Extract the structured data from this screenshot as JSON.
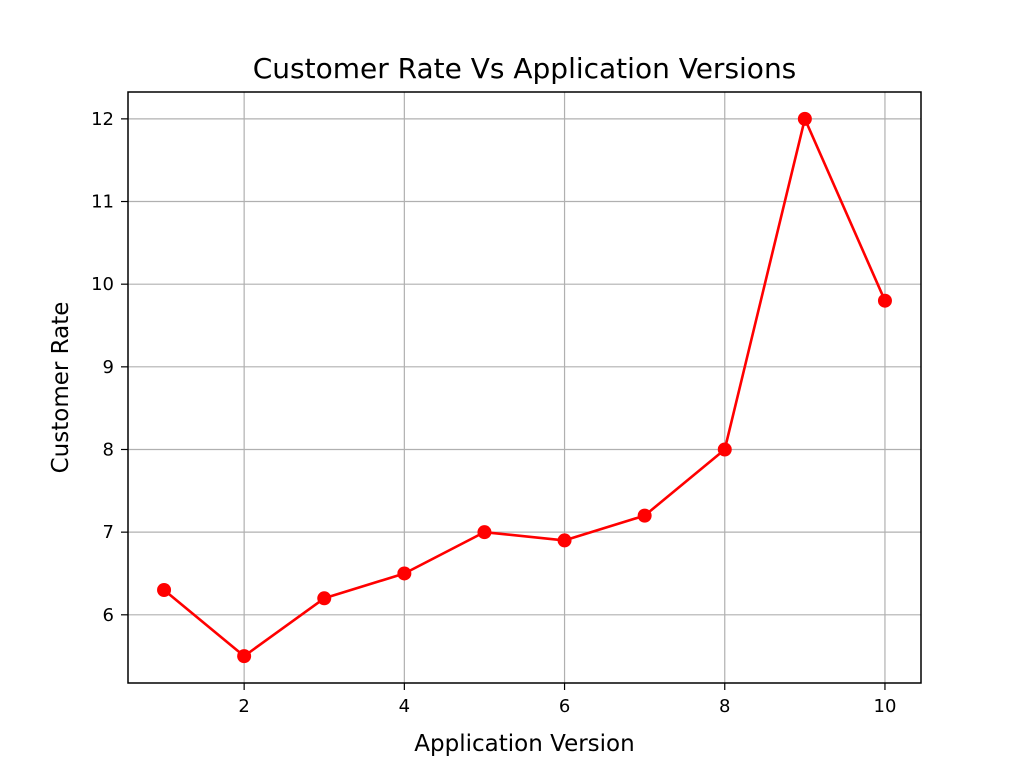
{
  "chart_data": {
    "type": "line",
    "title": "Customer Rate Vs Application Versions",
    "xlabel": "Application Version",
    "ylabel": "Customer Rate",
    "x": [
      1,
      2,
      3,
      4,
      5,
      6,
      7,
      8,
      9,
      10
    ],
    "series": [
      {
        "values": [
          6.3,
          5.5,
          6.2,
          6.5,
          7.0,
          6.9,
          7.2,
          8.0,
          12.0,
          9.8
        ]
      }
    ],
    "xticks": [
      2,
      4,
      6,
      8,
      10
    ],
    "yticks": [
      6,
      7,
      8,
      9,
      10,
      11,
      12
    ],
    "xlim": [
      0.55,
      10.45
    ],
    "ylim": [
      5.175,
      12.325
    ],
    "grid": true,
    "line_color": "#ff0000",
    "marker": "circle"
  }
}
